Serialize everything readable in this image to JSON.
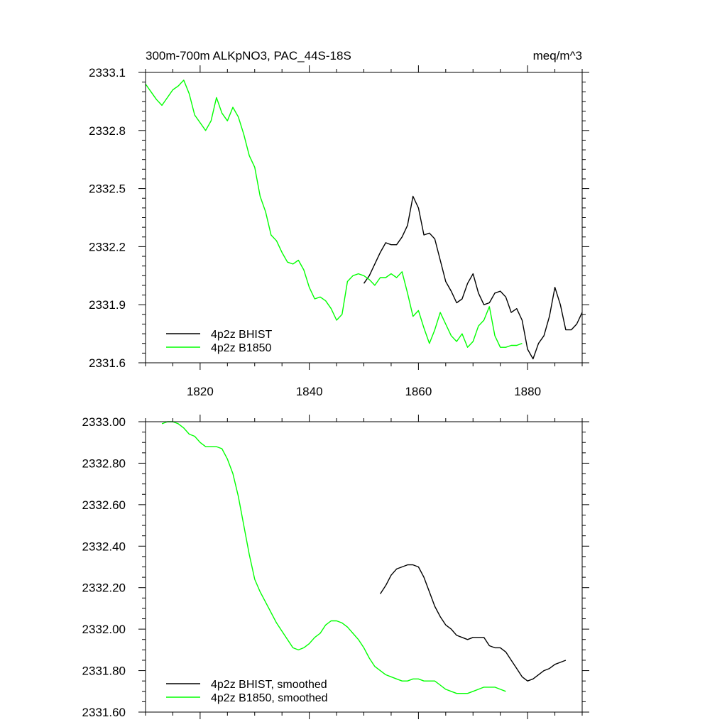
{
  "chart_data": [
    {
      "type": "line",
      "title": "300m-700m ALKpNO3, PAC_44S-18S",
      "units": "meq/m^3",
      "xlabel": "",
      "ylabel": "",
      "xlim": [
        1810,
        1890
      ],
      "ylim": [
        2331.6,
        2333.1
      ],
      "x_ticks": [
        1820,
        1840,
        1860,
        1880
      ],
      "x_tick_labels": [
        "1820",
        "1840",
        "1860",
        "1880"
      ],
      "y_ticks": [
        2331.6,
        2331.9,
        2332.2,
        2332.5,
        2332.8,
        2333.1
      ],
      "y_tick_labels": [
        "2331.6",
        "2331.9",
        "2332.2",
        "2332.5",
        "2332.8",
        "2333.1"
      ],
      "legend_position": "bottom-left",
      "series": [
        {
          "name": "4p2z BHIST",
          "color": "#000000",
          "x": [
            1850,
            1851,
            1852,
            1853,
            1854,
            1855,
            1856,
            1857,
            1858,
            1859,
            1860,
            1861,
            1862,
            1863,
            1864,
            1865,
            1866,
            1867,
            1868,
            1869,
            1870,
            1871,
            1872,
            1873,
            1874,
            1875,
            1876,
            1877,
            1878,
            1879,
            1880,
            1881,
            1882,
            1883,
            1884,
            1885,
            1886,
            1887,
            1888,
            1889,
            1890
          ],
          "values": [
            2332.01,
            2332.05,
            2332.11,
            2332.17,
            2332.22,
            2332.21,
            2332.21,
            2332.25,
            2332.31,
            2332.46,
            2332.4,
            2332.26,
            2332.27,
            2332.24,
            2332.13,
            2332.02,
            2331.97,
            2331.91,
            2331.93,
            2332.01,
            2332.06,
            2331.96,
            2331.9,
            2331.91,
            2331.96,
            2331.97,
            2331.94,
            2331.86,
            2331.88,
            2331.82,
            2331.67,
            2331.62,
            2331.7,
            2331.74,
            2331.84,
            2331.99,
            2331.9,
            2331.77,
            2331.77,
            2331.8,
            2331.86
          ]
        },
        {
          "name": "4p2z B1850",
          "color": "#00ff00",
          "x": [
            1810,
            1811,
            1812,
            1813,
            1814,
            1815,
            1816,
            1817,
            1818,
            1819,
            1820,
            1821,
            1822,
            1823,
            1824,
            1825,
            1826,
            1827,
            1828,
            1829,
            1830,
            1831,
            1832,
            1833,
            1834,
            1835,
            1836,
            1837,
            1838,
            1839,
            1840,
            1841,
            1842,
            1843,
            1844,
            1845,
            1846,
            1847,
            1848,
            1849,
            1850,
            1851,
            1852,
            1853,
            1854,
            1855,
            1856,
            1857,
            1858,
            1859,
            1860,
            1861,
            1862,
            1863,
            1864,
            1865,
            1866,
            1867,
            1868,
            1869,
            1870,
            1871,
            1872,
            1873,
            1874,
            1875,
            1876,
            1877,
            1878,
            1879
          ],
          "values": [
            2333.04,
            2333.0,
            2332.96,
            2332.93,
            2332.97,
            2333.01,
            2333.03,
            2333.06,
            2332.99,
            2332.88,
            2332.84,
            2332.8,
            2332.85,
            2332.97,
            2332.89,
            2332.85,
            2332.92,
            2332.87,
            2332.78,
            2332.67,
            2332.61,
            2332.46,
            2332.38,
            2332.26,
            2332.23,
            2332.17,
            2332.12,
            2332.11,
            2332.13,
            2332.08,
            2331.99,
            2331.93,
            2331.94,
            2331.92,
            2331.88,
            2331.82,
            2331.85,
            2332.02,
            2332.05,
            2332.06,
            2332.05,
            2332.03,
            2332.0,
            2332.04,
            2332.04,
            2332.06,
            2332.04,
            2332.07,
            2331.96,
            2331.84,
            2331.87,
            2331.78,
            2331.7,
            2331.77,
            2331.86,
            2331.8,
            2331.74,
            2331.71,
            2331.75,
            2331.68,
            2331.71,
            2331.79,
            2331.82,
            2331.89,
            2331.74,
            2331.68,
            2331.68,
            2331.69,
            2331.69,
            2331.7
          ]
        }
      ]
    },
    {
      "type": "line",
      "title": "",
      "xlabel": "",
      "ylabel": "",
      "xlim": [
        1810,
        1890
      ],
      "ylim": [
        2331.6,
        2333.0
      ],
      "x_ticks": [
        1820,
        1840,
        1860,
        1880
      ],
      "y_ticks": [
        2331.6,
        2331.8,
        2332.0,
        2332.2,
        2332.4,
        2332.6,
        2332.8,
        2333.0
      ],
      "y_tick_labels": [
        "2331.60",
        "2331.80",
        "2332.00",
        "2332.20",
        "2332.40",
        "2332.60",
        "2332.80",
        "2333.00"
      ],
      "legend_position": "bottom-left",
      "series": [
        {
          "name": "4p2z BHIST, smoothed",
          "color": "#000000",
          "x": [
            1853,
            1854,
            1855,
            1856,
            1857,
            1858,
            1859,
            1860,
            1861,
            1862,
            1863,
            1864,
            1865,
            1866,
            1867,
            1868,
            1869,
            1870,
            1871,
            1872,
            1873,
            1874,
            1875,
            1876,
            1877,
            1878,
            1879,
            1880,
            1881,
            1882,
            1883,
            1884,
            1885,
            1886,
            1887
          ],
          "values": [
            2332.17,
            2332.21,
            2332.26,
            2332.29,
            2332.3,
            2332.31,
            2332.31,
            2332.3,
            2332.25,
            2332.18,
            2332.11,
            2332.06,
            2332.02,
            2332.0,
            2331.97,
            2331.96,
            2331.95,
            2331.96,
            2331.96,
            2331.96,
            2331.92,
            2331.91,
            2331.91,
            2331.89,
            2331.85,
            2331.81,
            2331.77,
            2331.75,
            2331.76,
            2331.78,
            2331.8,
            2331.81,
            2331.83,
            2331.84,
            2331.85
          ]
        },
        {
          "name": "4p2z B1850, smoothed",
          "color": "#00ff00",
          "x": [
            1813,
            1814,
            1815,
            1816,
            1817,
            1818,
            1819,
            1820,
            1821,
            1822,
            1823,
            1824,
            1825,
            1826,
            1827,
            1828,
            1829,
            1830,
            1831,
            1832,
            1833,
            1834,
            1835,
            1836,
            1837,
            1838,
            1839,
            1840,
            1841,
            1842,
            1843,
            1844,
            1845,
            1846,
            1847,
            1848,
            1849,
            1850,
            1851,
            1852,
            1853,
            1854,
            1855,
            1856,
            1857,
            1858,
            1859,
            1860,
            1861,
            1862,
            1863,
            1864,
            1865,
            1866,
            1867,
            1868,
            1869,
            1870,
            1871,
            1872,
            1873,
            1874,
            1875,
            1876
          ],
          "values": [
            2332.99,
            2333.0,
            2333.0,
            2332.99,
            2332.97,
            2332.94,
            2332.93,
            2332.9,
            2332.88,
            2332.88,
            2332.88,
            2332.87,
            2332.82,
            2332.75,
            2332.64,
            2332.5,
            2332.36,
            2332.24,
            2332.18,
            2332.13,
            2332.08,
            2332.03,
            2331.99,
            2331.95,
            2331.91,
            2331.9,
            2331.91,
            2331.93,
            2331.96,
            2331.98,
            2332.02,
            2332.04,
            2332.04,
            2332.03,
            2332.01,
            2331.98,
            2331.95,
            2331.91,
            2331.86,
            2331.82,
            2331.8,
            2331.78,
            2331.77,
            2331.76,
            2331.75,
            2331.75,
            2331.76,
            2331.76,
            2331.75,
            2331.75,
            2331.75,
            2331.73,
            2331.71,
            2331.7,
            2331.69,
            2331.69,
            2331.69,
            2331.7,
            2331.71,
            2331.72,
            2331.72,
            2331.72,
            2331.71,
            2331.7
          ]
        }
      ]
    }
  ]
}
